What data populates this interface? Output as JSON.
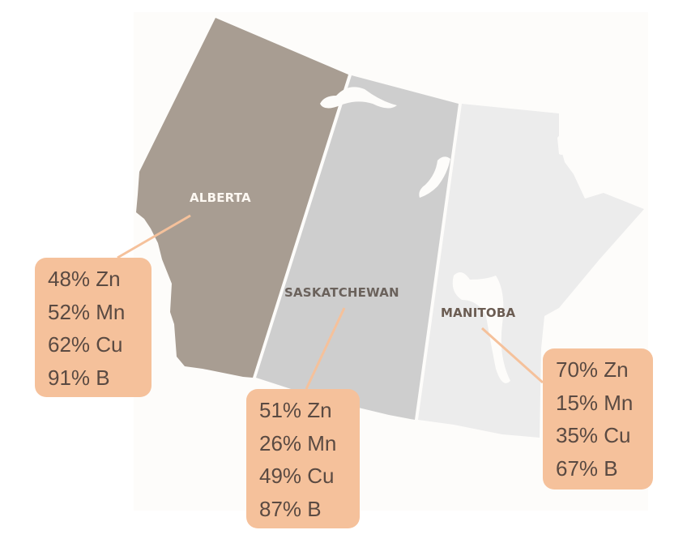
{
  "colors": {
    "alberta": "#a89d92",
    "saskatchewan": "#cecece",
    "manitoba": "#ececec",
    "callout": "#f5c19b",
    "leader": "#f5c19b",
    "text": "#5a4a42"
  },
  "regions": [
    {
      "name": "ALBERTA",
      "stats": [
        "48% Zn",
        "52% Mn",
        "62% Cu",
        "91% B"
      ]
    },
    {
      "name": "SASKATCHEWAN",
      "stats": [
        "51% Zn",
        "26% Mn",
        "49% Cu",
        "87% B"
      ]
    },
    {
      "name": "MANITOBA",
      "stats": [
        "70% Zn",
        "15% Mn",
        "35% Cu",
        "67% B"
      ]
    }
  ]
}
